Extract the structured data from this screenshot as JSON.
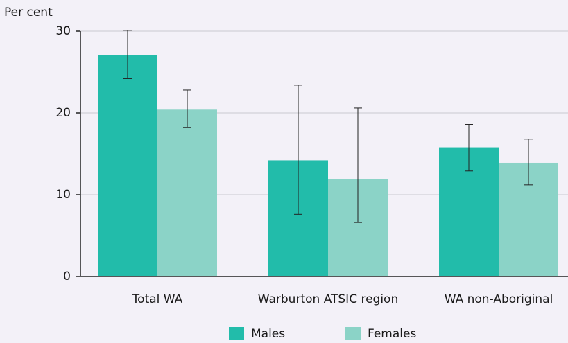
{
  "chart_data": {
    "type": "bar",
    "y_label": "Per cent",
    "categories": [
      "Total WA",
      "Warburton ATSIC region",
      "WA non-Aboriginal"
    ],
    "series": [
      {
        "name": "Males",
        "color": "#22bcaa",
        "values": [
          27.1,
          14.2,
          15.8
        ],
        "error_low": [
          24.2,
          7.6,
          12.9
        ],
        "error_high": [
          30.1,
          23.4,
          18.6
        ]
      },
      {
        "name": "Females",
        "color": "#8bd3c7",
        "values": [
          20.4,
          11.9,
          13.9
        ],
        "error_low": [
          18.2,
          6.6,
          11.2
        ],
        "error_high": [
          22.8,
          20.6,
          16.8
        ]
      }
    ],
    "ylim": [
      0,
      30
    ],
    "yticks": [
      0,
      10,
      20,
      30
    ],
    "grid": true,
    "legend": "bottom"
  }
}
